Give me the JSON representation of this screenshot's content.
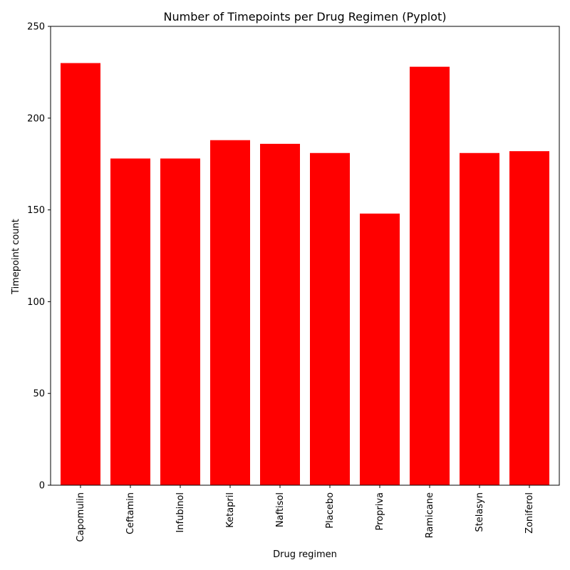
{
  "chart_data": {
    "type": "bar",
    "title": "Number of Timepoints per Drug Regimen (Pyplot)",
    "xlabel": "Drug regimen",
    "ylabel": "Timepoint count",
    "categories": [
      "Capomulin",
      "Ceftamin",
      "Infubinol",
      "Ketapril",
      "Naftisol",
      "Placebo",
      "Propriva",
      "Ramicane",
      "Stelasyn",
      "Zoniferol"
    ],
    "values": [
      230,
      178,
      178,
      188,
      186,
      181,
      148,
      228,
      181,
      182
    ],
    "ylim": [
      0,
      250
    ],
    "yticks": [
      0,
      50,
      100,
      150,
      200,
      250
    ],
    "bar_color": "#ff0000",
    "grid": false,
    "legend": "none"
  }
}
